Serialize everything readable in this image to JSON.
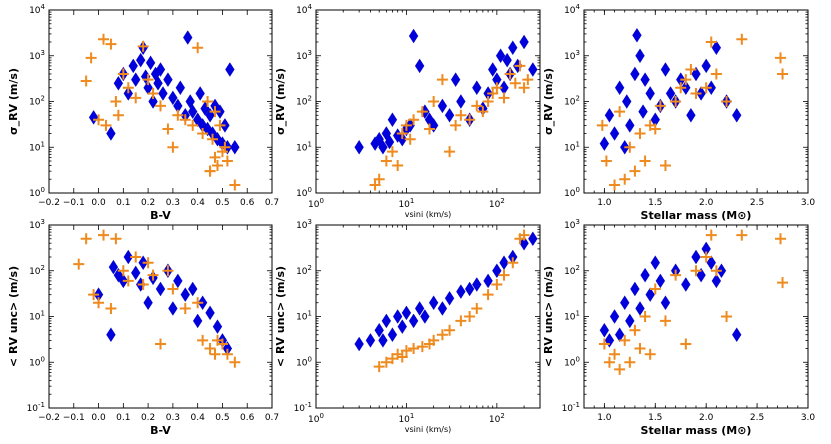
{
  "colors": {
    "diamond": "#0000dd",
    "cross": "#ee8a1e"
  },
  "chart_data": [
    {
      "type": "scatter",
      "panel": "top-left",
      "xlabel": "B-V",
      "ylabel": "σ_RV (m/s)",
      "xscale": "linear",
      "yscale": "log",
      "xlim": [
        -0.2,
        0.7
      ],
      "ylim": [
        1,
        10000
      ],
      "xticks": [
        "−0.2",
        "−0.1",
        "0.0",
        "0.1",
        "0.2",
        "0.3",
        "0.4",
        "0.5",
        "0.6",
        "0.7"
      ],
      "yticks": [
        "10^0",
        "10^1",
        "10^2",
        "10^3",
        "10^4"
      ],
      "series": [
        {
          "name": "diamond",
          "marker": "diamond",
          "x": [
            -0.02,
            0.05,
            0.08,
            0.1,
            0.12,
            0.14,
            0.15,
            0.17,
            0.18,
            0.19,
            0.2,
            0.21,
            0.22,
            0.23,
            0.24,
            0.25,
            0.26,
            0.28,
            0.3,
            0.32,
            0.33,
            0.35,
            0.36,
            0.37,
            0.38,
            0.4,
            0.41,
            0.42,
            0.43,
            0.44,
            0.45,
            0.46,
            0.47,
            0.48,
            0.49,
            0.5,
            0.51,
            0.52,
            0.53,
            0.55
          ],
          "y": [
            45,
            20,
            250,
            400,
            150,
            600,
            300,
            800,
            1500,
            350,
            200,
            700,
            100,
            400,
            250,
            500,
            150,
            300,
            120,
            80,
            200,
            50,
            2500,
            100,
            60,
            40,
            150,
            30,
            70,
            25,
            50,
            20,
            80,
            15,
            60,
            12,
            30,
            10,
            500,
            10
          ]
        },
        {
          "name": "cross",
          "marker": "plus",
          "x": [
            -0.05,
            -0.03,
            0.0,
            0.02,
            0.03,
            0.05,
            0.07,
            0.08,
            0.1,
            0.12,
            0.15,
            0.18,
            0.2,
            0.22,
            0.25,
            0.28,
            0.3,
            0.32,
            0.35,
            0.38,
            0.4,
            0.42,
            0.44,
            0.45,
            0.46,
            0.47,
            0.48,
            0.49,
            0.5,
            0.51,
            0.52,
            0.55,
            0.45,
            0.47
          ],
          "y": [
            280,
            900,
            40,
            2300,
            30,
            1800,
            100,
            50,
            400,
            200,
            120,
            1600,
            300,
            150,
            80,
            25,
            10,
            50,
            40,
            30,
            1500,
            20,
            100,
            3,
            15,
            6,
            4,
            30,
            8,
            10,
            5,
            1.5,
            3,
            60
          ]
        }
      ]
    },
    {
      "type": "scatter",
      "panel": "top-middle",
      "xlabel": "vsini (km/s)",
      "ylabel": "σ_RV (m/s)",
      "xscale": "log",
      "yscale": "log",
      "xlim": [
        1,
        300
      ],
      "ylim": [
        1,
        10000
      ],
      "xticks": [
        "10^0",
        "10^1",
        "10^2"
      ],
      "yticks": [
        "10^0",
        "10^1",
        "10^2",
        "10^3",
        "10^4"
      ],
      "series": [
        {
          "name": "diamond",
          "marker": "diamond",
          "x": [
            3,
            4.5,
            5,
            5.5,
            6,
            6.5,
            7,
            8,
            9,
            10,
            11,
            12,
            14,
            16,
            18,
            20,
            25,
            30,
            35,
            40,
            50,
            60,
            70,
            80,
            90,
            100,
            110,
            120,
            130,
            140,
            150,
            170,
            200,
            250
          ],
          "y": [
            10,
            12,
            15,
            10,
            20,
            13,
            40,
            18,
            15,
            25,
            30,
            2700,
            600,
            60,
            40,
            30,
            80,
            50,
            300,
            100,
            40,
            200,
            70,
            150,
            500,
            300,
            1000,
            200,
            800,
            400,
            1500,
            600,
            2000,
            500
          ]
        },
        {
          "name": "cross",
          "marker": "plus",
          "x": [
            4.5,
            5,
            6,
            7,
            8,
            9,
            10,
            11,
            12,
            15,
            18,
            20,
            25,
            30,
            35,
            40,
            50,
            60,
            70,
            80,
            90,
            100,
            120,
            140,
            160,
            180,
            200,
            220
          ],
          "y": [
            1.5,
            2,
            5,
            8,
            4,
            20,
            30,
            15,
            40,
            60,
            25,
            100,
            300,
            8,
            30,
            50,
            40,
            80,
            60,
            100,
            150,
            200,
            120,
            400,
            250,
            600,
            200,
            300
          ]
        }
      ]
    },
    {
      "type": "scatter",
      "panel": "top-right",
      "xlabel": "Stellar mass (M⊙)",
      "ylabel": "σ_RV (m/s)",
      "xscale": "linear",
      "yscale": "log",
      "xlim": [
        0.8,
        3.0
      ],
      "ylim": [
        1,
        10000
      ],
      "xticks": [
        "1.0",
        "1.5",
        "2.0",
        "2.5",
        "3.0"
      ],
      "yticks": [
        "10^0",
        "10^1",
        "10^2",
        "10^3",
        "10^4"
      ],
      "series": [
        {
          "name": "diamond",
          "marker": "diamond",
          "x": [
            1.0,
            1.05,
            1.1,
            1.15,
            1.2,
            1.22,
            1.25,
            1.3,
            1.32,
            1.35,
            1.38,
            1.4,
            1.45,
            1.5,
            1.55,
            1.6,
            1.65,
            1.7,
            1.75,
            1.8,
            1.85,
            1.9,
            1.95,
            2.0,
            2.05,
            2.1,
            2.2,
            2.3
          ],
          "y": [
            12,
            50,
            20,
            200,
            10,
            100,
            30,
            400,
            2800,
            1000,
            60,
            300,
            150,
            40,
            80,
            500,
            150,
            100,
            300,
            200,
            50,
            400,
            150,
            600,
            200,
            1500,
            100,
            50
          ]
        },
        {
          "name": "cross",
          "marker": "plus",
          "x": [
            0.98,
            1.02,
            1.1,
            1.15,
            1.2,
            1.25,
            1.3,
            1.35,
            1.4,
            1.45,
            1.5,
            1.55,
            1.6,
            1.7,
            1.75,
            1.8,
            1.85,
            1.9,
            2.0,
            2.05,
            2.1,
            2.2,
            2.35,
            2.73,
            2.75
          ],
          "y": [
            30,
            5,
            1.5,
            60,
            2,
            10,
            3,
            20,
            5,
            30,
            25,
            80,
            4,
            100,
            200,
            300,
            500,
            150,
            200,
            2000,
            400,
            100,
            2300,
            900,
            400
          ]
        }
      ]
    },
    {
      "type": "scatter",
      "panel": "bottom-left",
      "xlabel": "B-V",
      "ylabel": "< RV unc> (m/s)",
      "xscale": "linear",
      "yscale": "log",
      "xlim": [
        -0.2,
        0.7
      ],
      "ylim": [
        0.1,
        1000
      ],
      "xticks": [
        "−0.2",
        "−0.1",
        "0.0",
        "0.1",
        "0.2",
        "0.3",
        "0.4",
        "0.5",
        "0.6",
        "0.7"
      ],
      "yticks": [
        "10^-1",
        "10^0",
        "10^1",
        "10^2",
        "10^3"
      ],
      "series": [
        {
          "name": "diamond",
          "marker": "diamond",
          "x": [
            0.0,
            0.05,
            0.06,
            0.08,
            0.1,
            0.12,
            0.15,
            0.17,
            0.18,
            0.2,
            0.22,
            0.25,
            0.28,
            0.3,
            0.32,
            0.35,
            0.38,
            0.4,
            0.42,
            0.45,
            0.48,
            0.5,
            0.52
          ],
          "y": [
            30,
            4,
            120,
            80,
            60,
            200,
            90,
            50,
            150,
            20,
            70,
            40,
            100,
            15,
            60,
            30,
            40,
            8,
            20,
            12,
            6,
            3,
            2
          ]
        },
        {
          "name": "cross",
          "marker": "plus",
          "x": [
            -0.08,
            -0.05,
            -0.02,
            0.0,
            0.02,
            0.05,
            0.07,
            0.1,
            0.12,
            0.15,
            0.18,
            0.2,
            0.22,
            0.25,
            0.28,
            0.3,
            0.35,
            0.4,
            0.42,
            0.45,
            0.47,
            0.48,
            0.5,
            0.52,
            0.55
          ],
          "y": [
            140,
            500,
            30,
            20,
            600,
            15,
            500,
            100,
            60,
            200,
            50,
            150,
            80,
            2.5,
            100,
            40,
            15,
            20,
            3,
            2,
            1.5,
            3,
            2.5,
            1.5,
            1
          ]
        }
      ]
    },
    {
      "type": "scatter",
      "panel": "bottom-middle",
      "xlabel": "vsini (km/s)",
      "ylabel": "< RV unc> (m/s)",
      "xscale": "log",
      "yscale": "log",
      "xlim": [
        1,
        300
      ],
      "ylim": [
        0.1,
        1000
      ],
      "xticks": [
        "10^0",
        "10^1",
        "10^2"
      ],
      "yticks": [
        "10^-1",
        "10^0",
        "10^1",
        "10^2",
        "10^3"
      ],
      "series": [
        {
          "name": "diamond",
          "marker": "diamond",
          "x": [
            3,
            4,
            5,
            5.5,
            6,
            7,
            8,
            9,
            10,
            12,
            14,
            16,
            20,
            25,
            30,
            40,
            50,
            60,
            80,
            100,
            120,
            150,
            200,
            250
          ],
          "y": [
            2.5,
            3,
            5,
            3,
            8,
            4,
            10,
            6,
            12,
            8,
            15,
            10,
            20,
            15,
            25,
            35,
            40,
            50,
            60,
            100,
            150,
            200,
            400,
            500
          ]
        },
        {
          "name": "cross",
          "marker": "plus",
          "x": [
            5,
            6,
            7,
            8,
            9,
            10,
            12,
            15,
            18,
            20,
            25,
            30,
            40,
            50,
            60,
            80,
            100,
            120,
            150,
            180,
            200
          ],
          "y": [
            0.8,
            1,
            1.2,
            1.5,
            1.3,
            1.8,
            2,
            2.2,
            2.5,
            3,
            4,
            5,
            8,
            10,
            15,
            30,
            50,
            80,
            150,
            500,
            600
          ]
        }
      ]
    },
    {
      "type": "scatter",
      "panel": "bottom-right",
      "xlabel": "Stellar mass (M⊙)",
      "ylabel": "< RV unc> (m/s)",
      "xscale": "linear",
      "yscale": "log",
      "xlim": [
        0.8,
        3.0
      ],
      "ylim": [
        0.1,
        1000
      ],
      "xticks": [
        "1.0",
        "1.5",
        "2.0",
        "2.5",
        "3.0"
      ],
      "yticks": [
        "10^-1",
        "10^0",
        "10^1",
        "10^2",
        "10^3"
      ],
      "series": [
        {
          "name": "diamond",
          "marker": "diamond",
          "x": [
            1.0,
            1.05,
            1.1,
            1.15,
            1.2,
            1.25,
            1.3,
            1.35,
            1.4,
            1.45,
            1.5,
            1.55,
            1.6,
            1.7,
            1.8,
            1.9,
            1.95,
            2.0,
            2.05,
            2.1,
            2.15,
            2.3
          ],
          "y": [
            5,
            3,
            10,
            4,
            20,
            8,
            40,
            15,
            80,
            30,
            150,
            60,
            20,
            100,
            50,
            200,
            80,
            300,
            150,
            60,
            100,
            4
          ]
        },
        {
          "name": "cross",
          "marker": "plus",
          "x": [
            1.0,
            1.05,
            1.1,
            1.15,
            1.2,
            1.25,
            1.3,
            1.35,
            1.4,
            1.45,
            1.5,
            1.6,
            1.7,
            1.8,
            1.9,
            2.0,
            2.05,
            2.1,
            2.2,
            2.35,
            2.73,
            2.75
          ],
          "y": [
            2.5,
            1,
            1.5,
            0.7,
            3,
            1,
            5,
            2,
            10,
            1.5,
            40,
            8,
            80,
            2.5,
            100,
            200,
            600,
            100,
            10,
            600,
            500,
            55
          ]
        }
      ]
    }
  ]
}
